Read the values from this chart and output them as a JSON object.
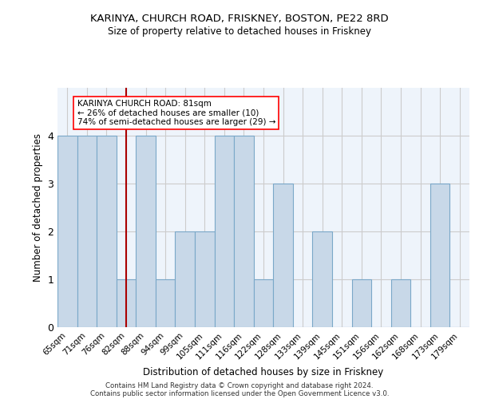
{
  "title1": "KARINYA, CHURCH ROAD, FRISKNEY, BOSTON, PE22 8RD",
  "title2": "Size of property relative to detached houses in Friskney",
  "xlabel": "Distribution of detached houses by size in Friskney",
  "ylabel": "Number of detached properties",
  "categories": [
    "65sqm",
    "71sqm",
    "76sqm",
    "82sqm",
    "88sqm",
    "94sqm",
    "99sqm",
    "105sqm",
    "111sqm",
    "116sqm",
    "122sqm",
    "128sqm",
    "133sqm",
    "139sqm",
    "145sqm",
    "151sqm",
    "156sqm",
    "162sqm",
    "168sqm",
    "173sqm",
    "179sqm"
  ],
  "values": [
    4,
    4,
    4,
    1,
    4,
    1,
    2,
    2,
    4,
    4,
    1,
    3,
    0,
    2,
    0,
    1,
    0,
    1,
    0,
    3,
    0
  ],
  "bar_color": "#c8d8e8",
  "bar_edge_color": "#7aa8c8",
  "annotation_line_x_label": "82sqm",
  "annotation_line_color": "#aa0000",
  "annotation_box_text": "KARINYA CHURCH ROAD: 81sqm\n← 26% of detached houses are smaller (10)\n74% of semi-detached houses are larger (29) →",
  "ylim": [
    0,
    5
  ],
  "yticks": [
    0,
    1,
    2,
    3,
    4
  ],
  "grid_color": "#cccccc",
  "bg_color": "#eef4fb",
  "footer1": "Contains HM Land Registry data © Crown copyright and database right 2024.",
  "footer2": "Contains public sector information licensed under the Open Government Licence v3.0."
}
